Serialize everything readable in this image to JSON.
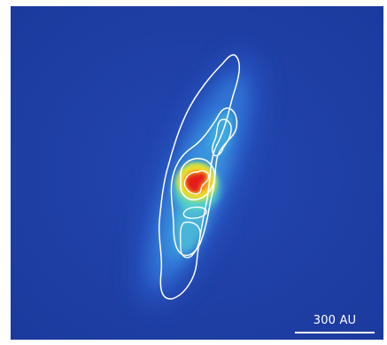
{
  "image": {
    "subject": "astronomical-image",
    "colormap": [
      "#1f3fa6",
      "#2f6fd6",
      "#3fb6e4",
      "#58d6c8",
      "#f3e22a",
      "#f08a1a",
      "#e41d1d"
    ],
    "background_color": "#1f3fa6",
    "contour_color": "#ffffff"
  },
  "scale_bar": {
    "label": "300 AU",
    "color": "#ffffff"
  }
}
